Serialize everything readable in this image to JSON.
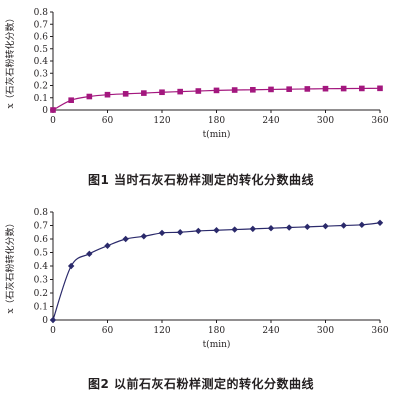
{
  "figures": [
    {
      "caption": "图1  当时石灰石粉样测定的转化分数曲线",
      "chart_data": {
        "type": "line",
        "xlabel": "t(min)",
        "ylabel": "x（石灰石粉转化分数）",
        "xlim": [
          0,
          360
        ],
        "ylim": [
          0,
          0.8
        ],
        "x_ticks": [
          0,
          60,
          120,
          180,
          240,
          300,
          360
        ],
        "y_ticks": [
          0,
          0.1,
          0.2,
          0.3,
          0.4,
          0.5,
          0.6,
          0.7,
          0.8
        ],
        "y_tick_labels": [
          "0",
          "0.1",
          "0.2",
          "0.3",
          "0.4",
          "0.5",
          "0.6",
          "0.7",
          "0.8"
        ],
        "grid": false,
        "marker": "square",
        "color": "#a3177e",
        "series": [
          {
            "x": [
              0,
              20,
              40,
              60,
              80,
              100,
              120,
              140,
              160,
              180,
              200,
              220,
              240,
              260,
              280,
              300,
              320,
              340,
              360
            ],
            "values": [
              0.0,
              0.08,
              0.11,
              0.125,
              0.132,
              0.138,
              0.145,
              0.15,
              0.155,
              0.16,
              0.163,
              0.165,
              0.168,
              0.17,
              0.172,
              0.174,
              0.175,
              0.176,
              0.177
            ]
          }
        ]
      }
    },
    {
      "caption": "图2  以前石灰石粉样测定的转化分数曲线",
      "chart_data": {
        "type": "line",
        "xlabel": "t(min)",
        "ylabel": "x（石灰石粉转化分数）",
        "xlim": [
          0,
          360
        ],
        "ylim": [
          0,
          0.8
        ],
        "x_ticks": [
          0,
          60,
          120,
          180,
          240,
          300,
          360
        ],
        "y_ticks": [
          0,
          0.1,
          0.2,
          0.3,
          0.4,
          0.5,
          0.6,
          0.7,
          0.8
        ],
        "y_tick_labels": [
          "0",
          "0.1",
          "0.2",
          "0.3",
          "0.4",
          "0.5",
          "0.6",
          "0.7",
          "0.8"
        ],
        "grid": false,
        "marker": "diamond",
        "color": "#2b2a6b",
        "series": [
          {
            "x": [
              0,
              20,
              40,
              60,
              80,
              100,
              120,
              140,
              160,
              180,
              200,
              220,
              240,
              260,
              280,
              300,
              320,
              340,
              360
            ],
            "values": [
              0.0,
              0.4,
              0.49,
              0.55,
              0.6,
              0.62,
              0.645,
              0.65,
              0.66,
              0.665,
              0.67,
              0.675,
              0.68,
              0.685,
              0.69,
              0.695,
              0.7,
              0.705,
              0.72
            ]
          }
        ]
      }
    }
  ]
}
